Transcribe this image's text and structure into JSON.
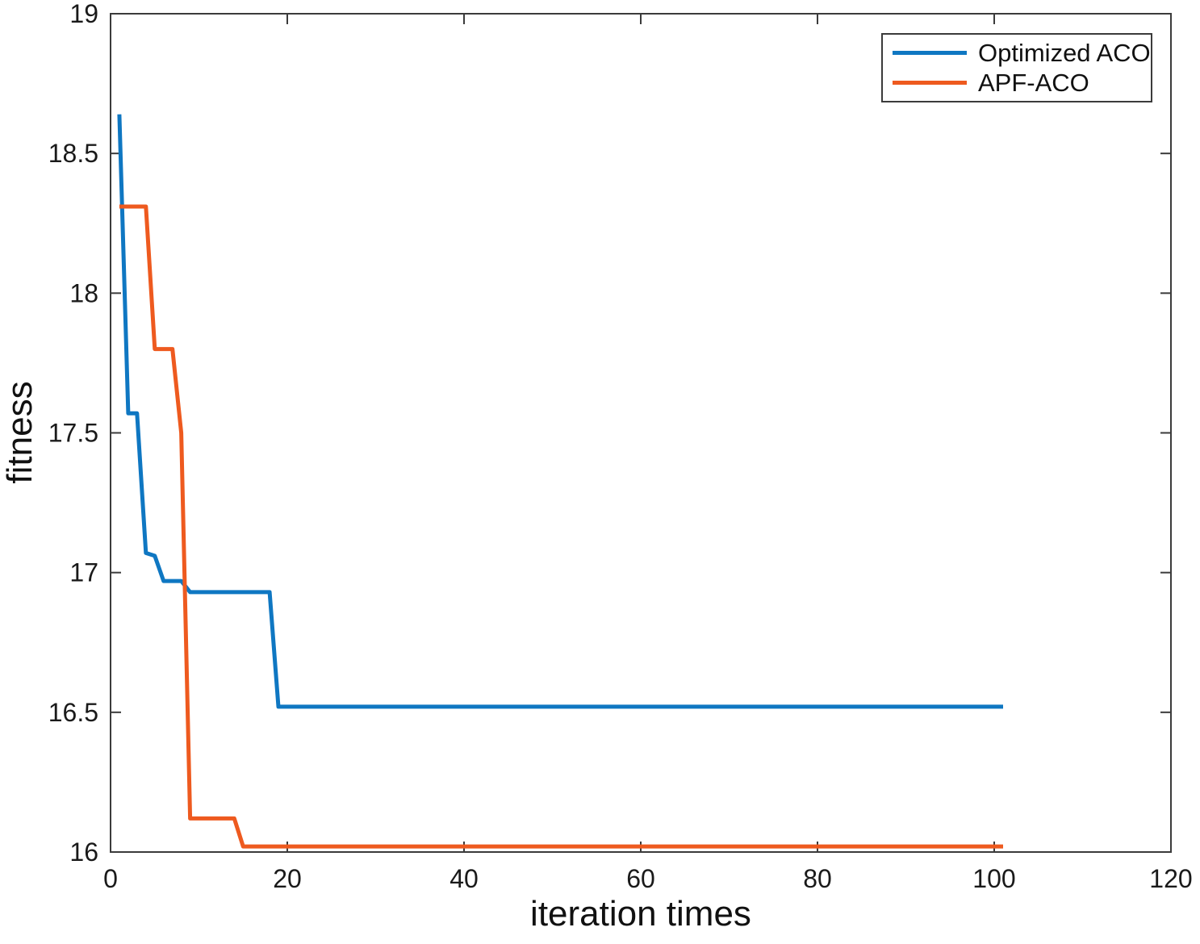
{
  "chart_data": {
    "type": "line",
    "title": "",
    "xlabel": "iteration times",
    "ylabel": "fitness",
    "xlim": [
      0,
      120
    ],
    "ylim": [
      16,
      19
    ],
    "xticks": [
      0,
      20,
      40,
      60,
      80,
      100,
      120
    ],
    "yticks": [
      16,
      16.5,
      17,
      17.5,
      18,
      18.5,
      19
    ],
    "grid": false,
    "legend_position": "top-right",
    "axis_color": "#3b3b3b",
    "tick_label_color": "#1a1a1a",
    "series": [
      {
        "name": "Optimized ACO",
        "color": "#0f77c2",
        "points": [
          [
            1,
            18.64
          ],
          [
            2,
            17.57
          ],
          [
            3,
            17.57
          ],
          [
            4,
            17.07
          ],
          [
            5,
            17.06
          ],
          [
            6,
            16.97
          ],
          [
            7,
            16.97
          ],
          [
            8,
            16.97
          ],
          [
            9,
            16.93
          ],
          [
            18,
            16.93
          ],
          [
            19,
            16.52
          ],
          [
            101,
            16.52
          ]
        ]
      },
      {
        "name": "APF-ACO",
        "color": "#ee5a1f",
        "points": [
          [
            1,
            18.31
          ],
          [
            4,
            18.31
          ],
          [
            5,
            17.8
          ],
          [
            7,
            17.8
          ],
          [
            8,
            17.5
          ],
          [
            9,
            16.12
          ],
          [
            14,
            16.12
          ],
          [
            15,
            16.02
          ],
          [
            101,
            16.02
          ]
        ]
      }
    ]
  }
}
